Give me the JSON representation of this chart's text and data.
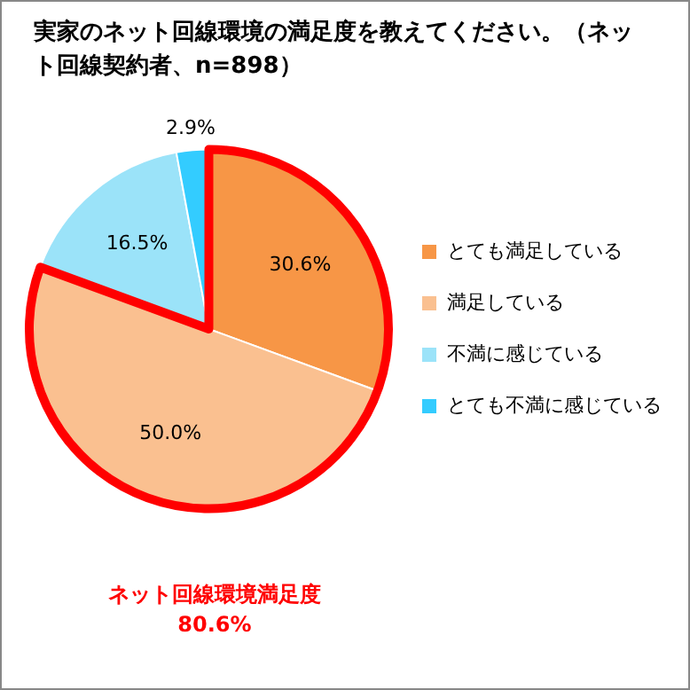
{
  "chart_data": {
    "type": "pie",
    "title": "実家のネット回線環境の満足度を教えてください。（ネット回線契約者、n=898）",
    "categories": [
      "とても満足している",
      "満足している",
      "不満に感じている",
      "とても不満に感じている"
    ],
    "values": [
      30.6,
      50.0,
      16.5,
      2.9
    ],
    "colors": [
      "#f79646",
      "#fac090",
      "#9be3f9",
      "#33ccff"
    ],
    "value_labels": [
      "30.6%",
      "50.0%",
      "16.5%",
      "2.9%"
    ],
    "legend": "right",
    "annotations": [
      "ネット回線環境満足度",
      "80.6%"
    ]
  }
}
